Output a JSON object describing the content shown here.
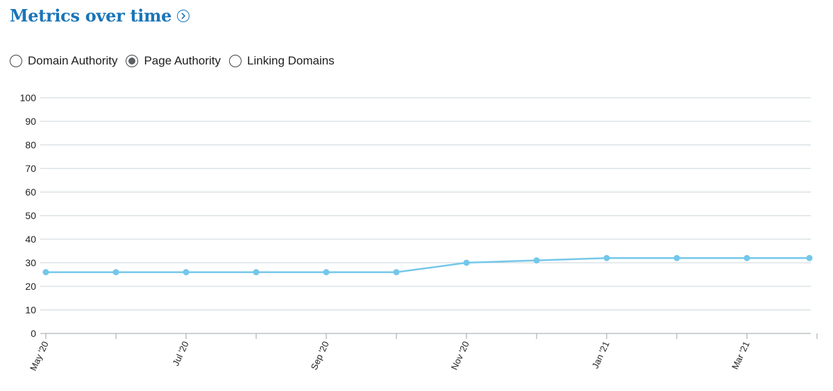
{
  "header": {
    "title": "Metrics over time",
    "info_icon": "chevron-right-circle-icon"
  },
  "radios": [
    {
      "label": "Domain Authority",
      "checked": false
    },
    {
      "label": "Page Authority",
      "checked": true
    },
    {
      "label": "Linking Domains",
      "checked": false
    }
  ],
  "colors": {
    "title": "#1a75b8",
    "line": "#74c7ea",
    "grid": "#c9d3d9",
    "axis": "#9aa4aa"
  },
  "chart_data": {
    "type": "line",
    "ylim": [
      0,
      100
    ],
    "yticks": [
      0,
      10,
      20,
      30,
      40,
      50,
      60,
      70,
      80,
      90,
      100
    ],
    "x": [
      "2020-05",
      "2020-06",
      "2020-07",
      "2020-08",
      "2020-09",
      "2020-10",
      "2020-11",
      "2020-12",
      "2021-01",
      "2021-02",
      "2021-03",
      "2021-04"
    ],
    "xtick_labels": [
      "May '20",
      "",
      "Jul '20",
      "",
      "Sep '20",
      "",
      "Nov '20",
      "",
      "Jan '21",
      "",
      "Mar '21",
      ""
    ],
    "series": [
      {
        "values": [
          26,
          26,
          26,
          26,
          26,
          26,
          30,
          31,
          32,
          32,
          32,
          32
        ]
      }
    ],
    "grid": true,
    "legend": "none"
  }
}
